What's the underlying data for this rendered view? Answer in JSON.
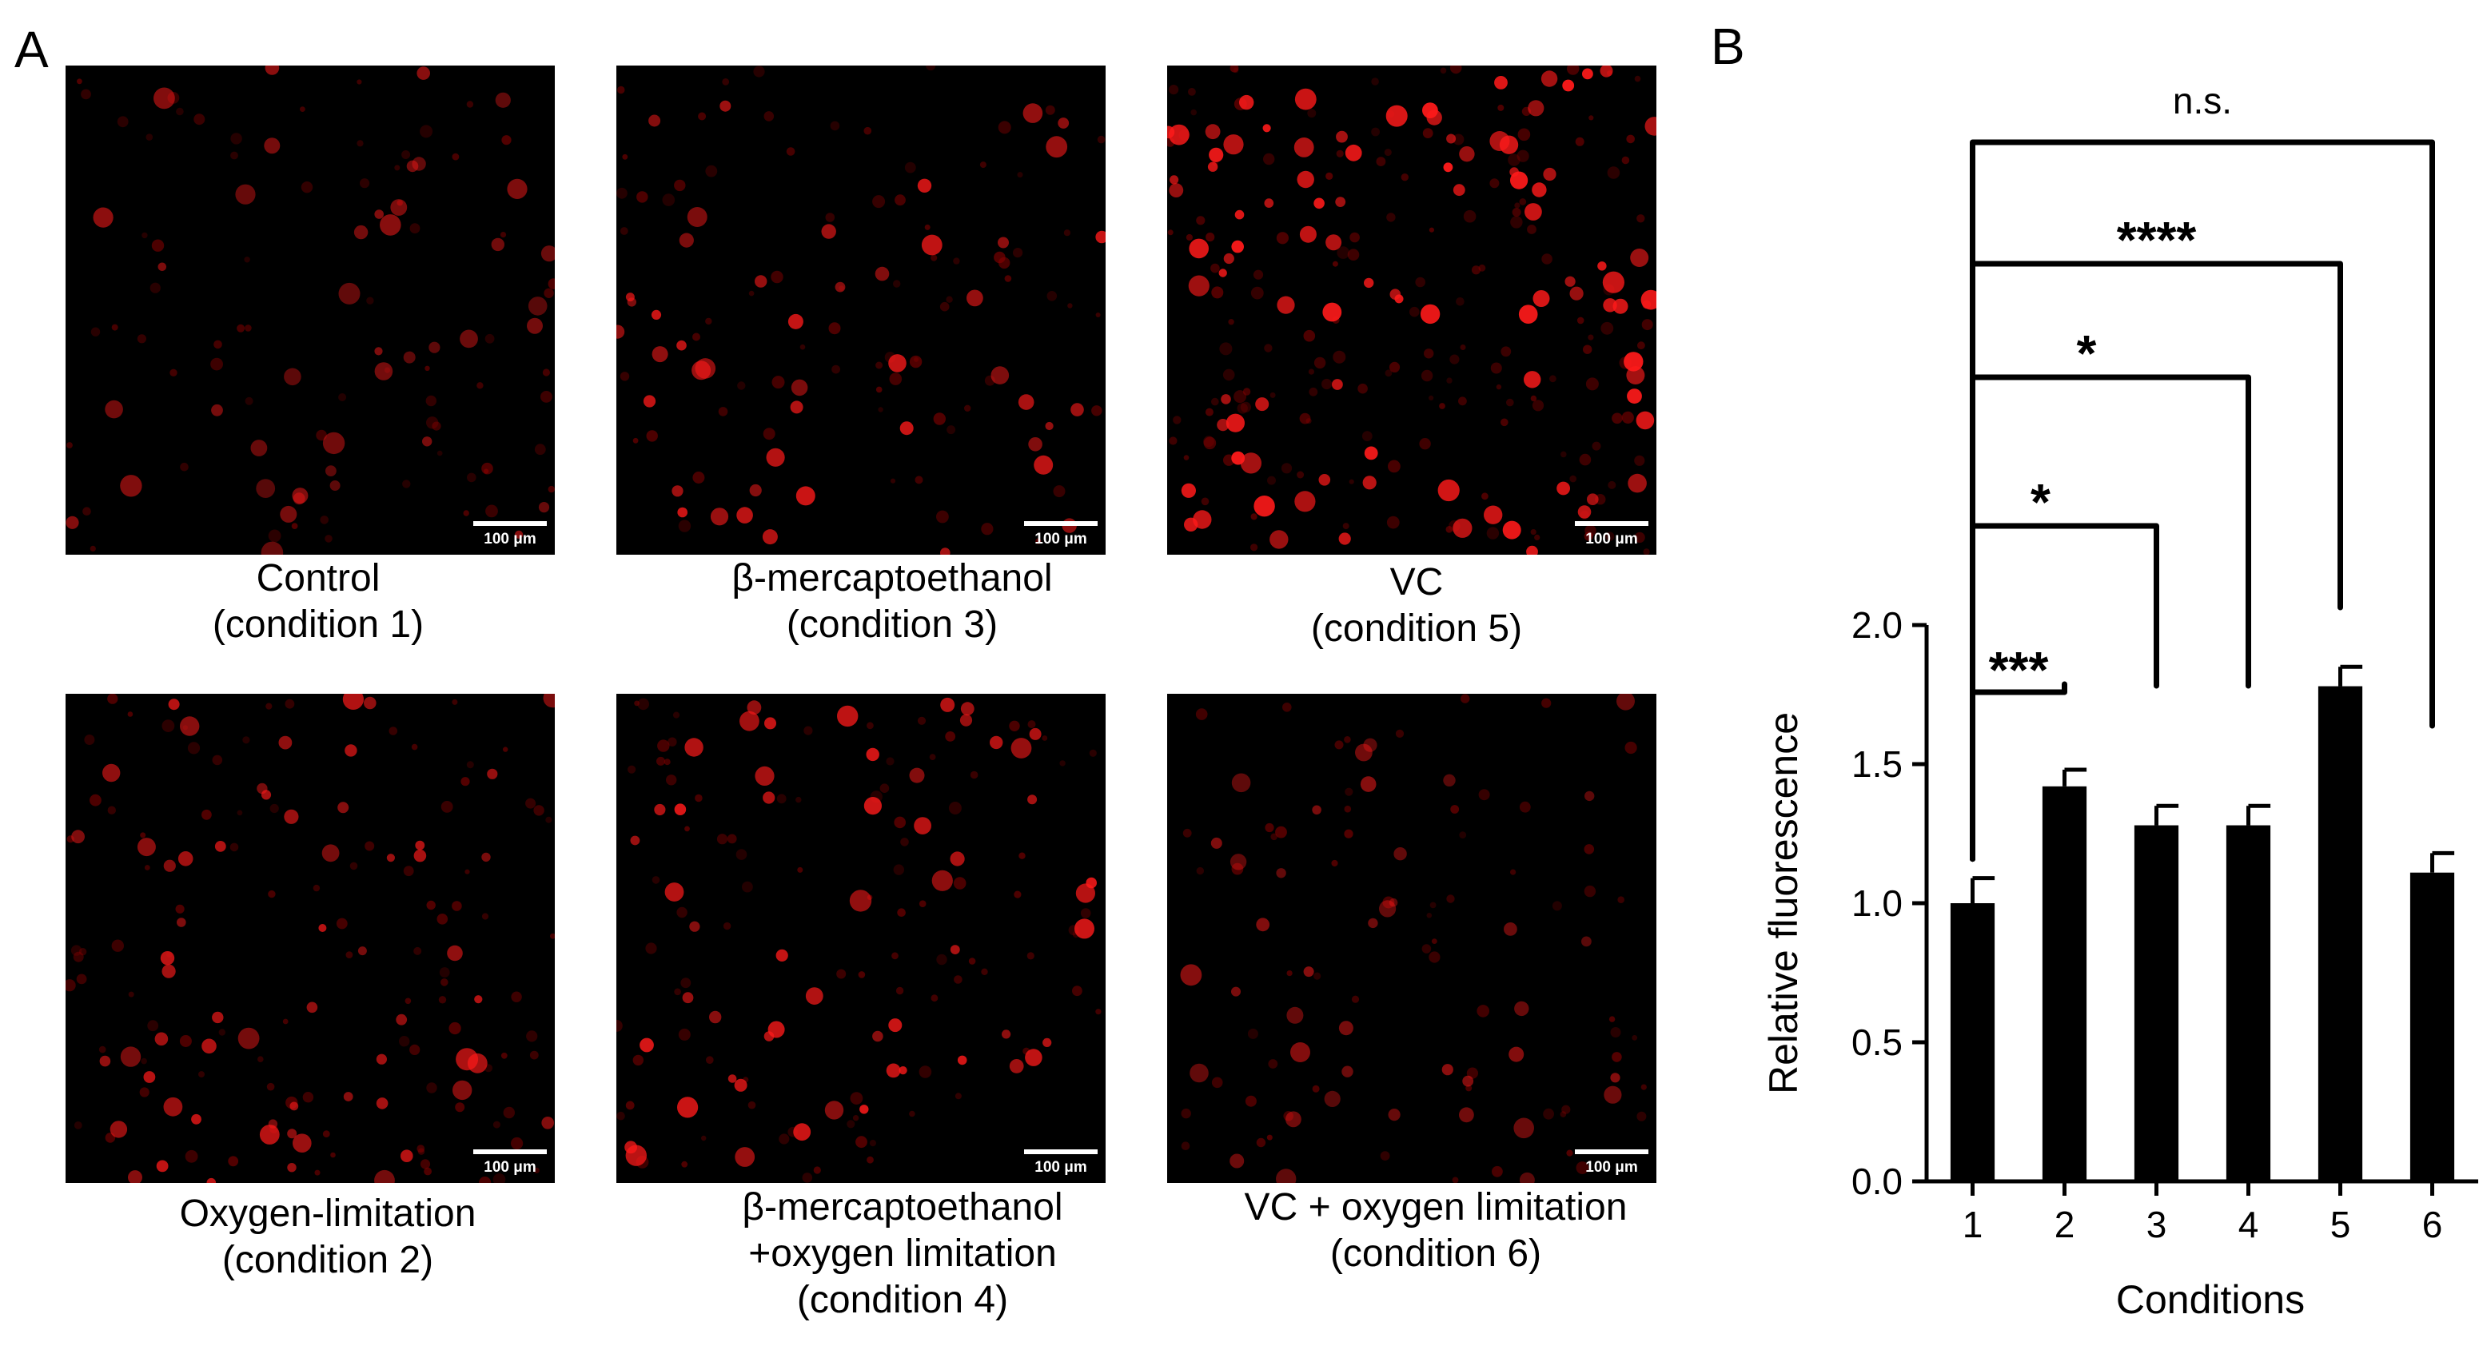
{
  "panels": {
    "a": "A",
    "b": "B"
  },
  "scale_bar": "100 μm",
  "micrographs": [
    {
      "line1": "Control",
      "line2": "(condition 1)",
      "line3": "",
      "density": 42,
      "brightness": 0.55
    },
    {
      "line1": "β-mercaptoethanol",
      "line2": "(condition 3)",
      "line3": "",
      "density": 46,
      "brightness": 0.8
    },
    {
      "line1": "VC",
      "line2": "(condition 5)",
      "line3": "",
      "density": 95,
      "brightness": 0.95
    },
    {
      "line1": "Oxygen-limitation",
      "line2": "(condition 2)",
      "line3": "",
      "density": 60,
      "brightness": 0.75
    },
    {
      "line1": "β-mercaptoethanol",
      "line2": "+oxygen limitation",
      "line3": "(condition 4)",
      "density": 55,
      "brightness": 0.85
    },
    {
      "line1": "VC + oxygen limitation",
      "line2": "(condition 6)",
      "line3": "",
      "density": 40,
      "brightness": 0.55
    }
  ],
  "colors": {
    "fluor": "#ff1a1a",
    "background": "#000000",
    "bar": "#000000"
  },
  "chart_data": {
    "type": "bar",
    "categories": [
      "1",
      "2",
      "3",
      "4",
      "5",
      "6"
    ],
    "values": [
      1.0,
      1.42,
      1.28,
      1.28,
      1.78,
      1.11
    ],
    "errors": [
      0.09,
      0.06,
      0.07,
      0.07,
      0.07,
      0.07
    ],
    "xlabel": "Conditions",
    "ylabel": "Relative fluorescence",
    "ylim": [
      0,
      2.0
    ],
    "yticks": [
      "0.0",
      "0.5",
      "1.0",
      "1.5",
      "2.0"
    ],
    "significance": [
      {
        "from": "1",
        "to": "2",
        "label": "***"
      },
      {
        "from": "1",
        "to": "3",
        "label": "*"
      },
      {
        "from": "1",
        "to": "4",
        "label": "*"
      },
      {
        "from": "1",
        "to": "5",
        "label": "****"
      },
      {
        "from": "1",
        "to": "6",
        "label": "n.s."
      }
    ]
  }
}
